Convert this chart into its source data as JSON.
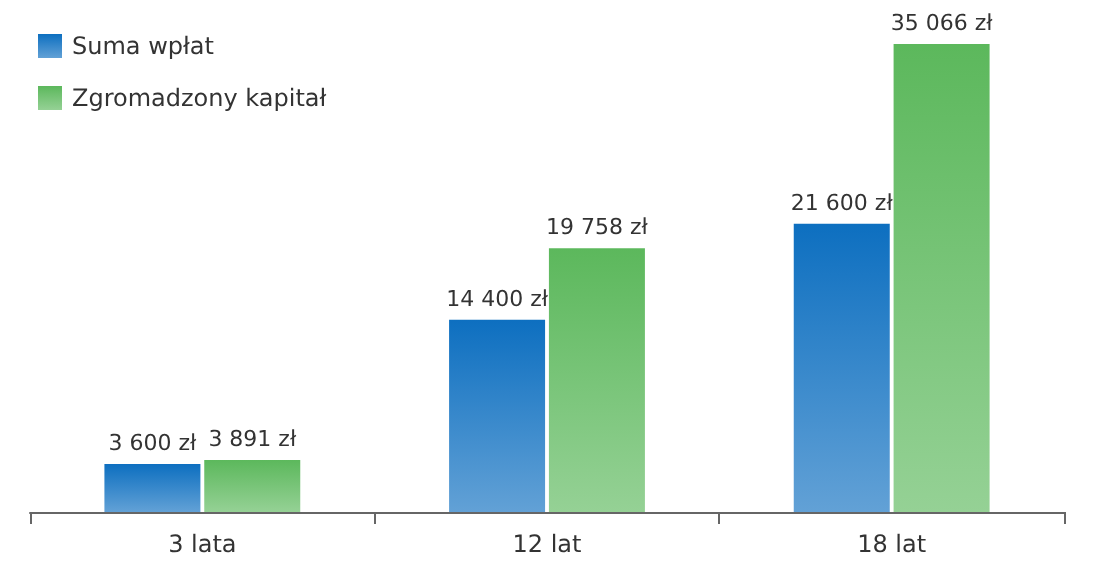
{
  "chart_data": {
    "type": "bar",
    "categories": [
      "3 lata",
      "12 lat",
      "18 lat"
    ],
    "series": [
      {
        "name": "Suma wpłat",
        "color": "#0d6fc0",
        "values": [
          3600,
          14400,
          21600
        ],
        "value_labels": [
          "3 600 zł",
          "14 400 zł",
          "21 600 zł"
        ]
      },
      {
        "name": "Zgromadzony kapitał",
        "color": "#5cb85c",
        "values": [
          3891,
          19758,
          35066
        ],
        "value_labels": [
          "3 891 zł",
          "19 758 zł",
          "35 066 zł"
        ]
      }
    ],
    "legend": "top left",
    "grid": false,
    "tick_labels": "x"
  }
}
